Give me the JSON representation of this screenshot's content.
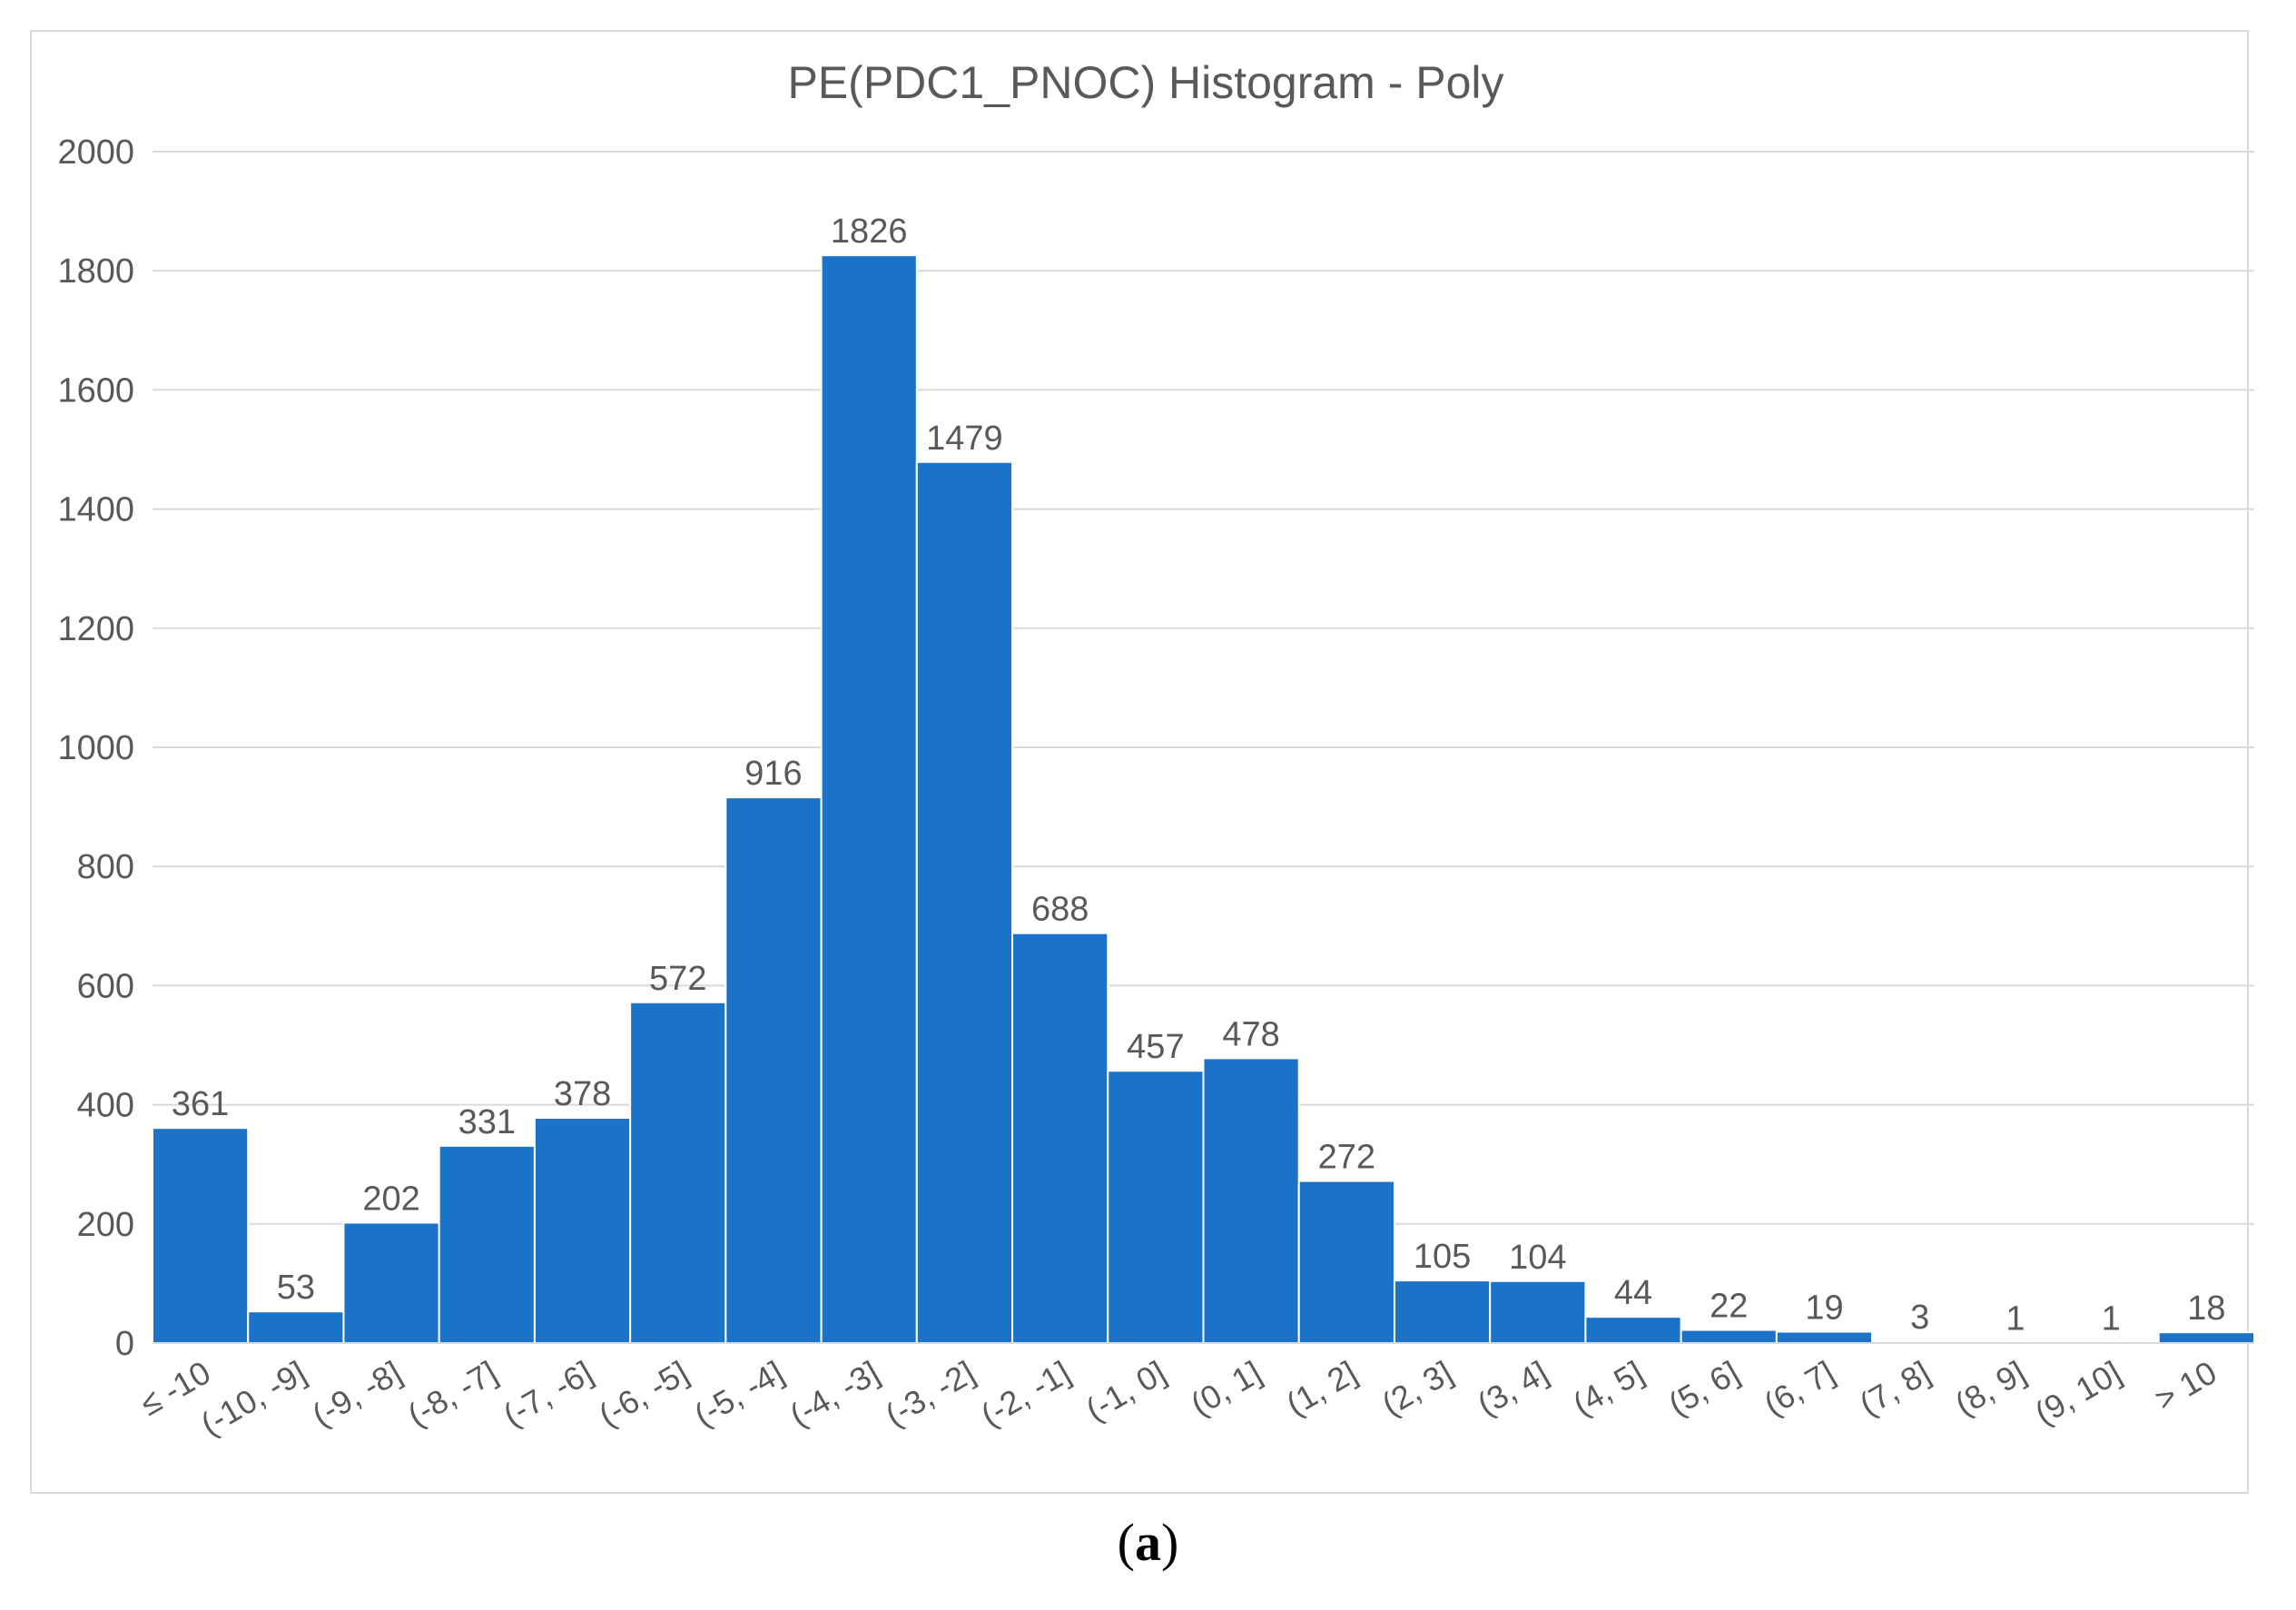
{
  "colors": {
    "bar": "#1b73c9",
    "bar_edge": "#ffffff",
    "grid": "#d9d9d9",
    "axis": "#d9d9d9",
    "title_text": "#595959",
    "tick_text": "#595959",
    "data_label_text": "#595959"
  },
  "chart_data": {
    "type": "bar",
    "title": "PE(PDC1_PNOC) Histogram - Poly",
    "xlabel": "",
    "ylabel": "",
    "ylim": [
      0,
      2000
    ],
    "yticks": [
      0,
      200,
      400,
      600,
      800,
      1000,
      1200,
      1400,
      1600,
      1800,
      2000
    ],
    "grid": true,
    "legend": "none",
    "categories": [
      "≤ -10",
      "(-10, -9]",
      "(-9, -8]",
      "(-8, -7]",
      "(-7, -6]",
      "(-6, -5]",
      "(-5, -4]",
      "(-4, -3]",
      "(-3, -2]",
      "(-2, -1]",
      "(-1, 0]",
      "(0, 1]",
      "(1, 2]",
      "(2, 3]",
      "(3, 4]",
      "(4, 5]",
      "(5, 6]",
      "(6, 7]",
      "(7, 8]",
      "(8, 9]",
      "(9, 10]",
      "> 10"
    ],
    "values": [
      361,
      53,
      202,
      331,
      378,
      572,
      916,
      1826,
      1479,
      688,
      457,
      478,
      272,
      105,
      104,
      44,
      22,
      19,
      3,
      1,
      1,
      18
    ]
  },
  "caption": {
    "open": "(",
    "letter": "a",
    "close": ")"
  }
}
